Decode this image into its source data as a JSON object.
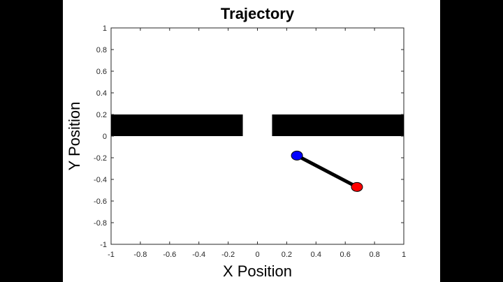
{
  "figure": {
    "background": "#ffffff",
    "frame_background": "#000000"
  },
  "chart_data": {
    "type": "line",
    "title": "Trajectory",
    "xlabel": "X Position",
    "ylabel": "Y Position",
    "xlim": [
      -1,
      1
    ],
    "ylim": [
      -1,
      1
    ],
    "xticks": [
      -1,
      -0.8,
      -0.6,
      -0.4,
      -0.2,
      0,
      0.2,
      0.4,
      0.6,
      0.8,
      1
    ],
    "yticks": [
      -1,
      -0.8,
      -0.6,
      -0.4,
      -0.2,
      0,
      0.2,
      0.4,
      0.6,
      0.8,
      1
    ],
    "xtick_labels": [
      "-1",
      "-0.8",
      "-0.6",
      "-0.4",
      "-0.2",
      "0",
      "0.2",
      "0.4",
      "0.6",
      "0.8",
      "1"
    ],
    "ytick_labels": [
      "-1",
      "-0.8",
      "-0.6",
      "-0.4",
      "-0.2",
      "0",
      "0.2",
      "0.4",
      "0.6",
      "0.8",
      "1"
    ],
    "grid": false,
    "walls": [
      {
        "x": [
          -1,
          -0.1
        ],
        "y": [
          0,
          0.2
        ],
        "color": "#000000"
      },
      {
        "x": [
          0.1,
          1
        ],
        "y": [
          0,
          0.2
        ],
        "color": "#000000"
      }
    ],
    "segment": {
      "x": [
        0.27,
        0.68
      ],
      "y": [
        -0.18,
        -0.47
      ],
      "color": "#000000"
    },
    "points": [
      {
        "x": 0.27,
        "y": -0.18,
        "color": "#0000ff"
      },
      {
        "x": 0.68,
        "y": -0.47,
        "color": "#ff0000"
      }
    ]
  }
}
